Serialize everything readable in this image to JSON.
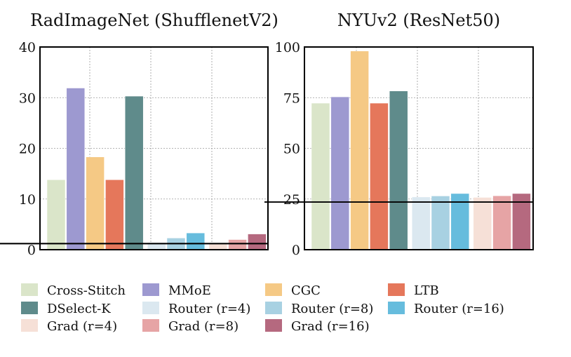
{
  "chart_data": [
    {
      "type": "bar",
      "title": "RadImageNet (ShufflenetV2)",
      "xlabel": "",
      "ylabel": "",
      "ylim": [
        0,
        40
      ],
      "yticks": [
        0,
        10,
        20,
        30,
        40
      ],
      "grid": true,
      "reference_line": 1.2,
      "categories": [
        "Cross-Stitch",
        "MMoE",
        "CGC",
        "LTB",
        "DSelect-K",
        "Router (r=4)",
        "Router (r=8)",
        "Router (r=16)",
        "Grad (r=4)",
        "Grad (r=8)",
        "Grad (r=16)"
      ],
      "values": [
        13.8,
        31.9,
        18.3,
        13.8,
        30.3,
        1.4,
        2.3,
        3.3,
        1.2,
        2.0,
        3.1
      ]
    },
    {
      "type": "bar",
      "title": "NYUv2 (ResNet50)",
      "xlabel": "",
      "ylabel": "",
      "ylim": [
        0,
        100
      ],
      "yticks": [
        0,
        25,
        50,
        75,
        100
      ],
      "grid": true,
      "reference_line": 23.5,
      "categories": [
        "Cross-Stitch",
        "MMoE",
        "CGC",
        "LTB",
        "DSelect-K",
        "Router (r=4)",
        "Router (r=8)",
        "Router (r=16)",
        "Grad (r=4)",
        "Grad (r=8)",
        "Grad (r=16)"
      ],
      "values": [
        72.3,
        75.4,
        98.0,
        72.3,
        78.3,
        26.0,
        26.5,
        27.7,
        25.8,
        26.6,
        27.7
      ]
    }
  ],
  "legend": {
    "placement": "bottom",
    "items": [
      {
        "label": "Cross-Stitch",
        "color": "#dae5c9"
      },
      {
        "label": "MMoE",
        "color": "#9d99d0"
      },
      {
        "label": "CGC",
        "color": "#f5c985"
      },
      {
        "label": "LTB",
        "color": "#e5775b"
      },
      {
        "label": "DSelect-K",
        "color": "#5f8b8b"
      },
      {
        "label": "Router (r=4)",
        "color": "#dbe8f0"
      },
      {
        "label": "Router (r=8)",
        "color": "#a8d1e2"
      },
      {
        "label": "Router (r=16)",
        "color": "#66bcdd"
      },
      {
        "label": "Grad (r=4)",
        "color": "#f6e0d7"
      },
      {
        "label": "Grad (r=8)",
        "color": "#e6a4a5"
      },
      {
        "label": "Grad (r=16)",
        "color": "#b5697f"
      }
    ]
  }
}
